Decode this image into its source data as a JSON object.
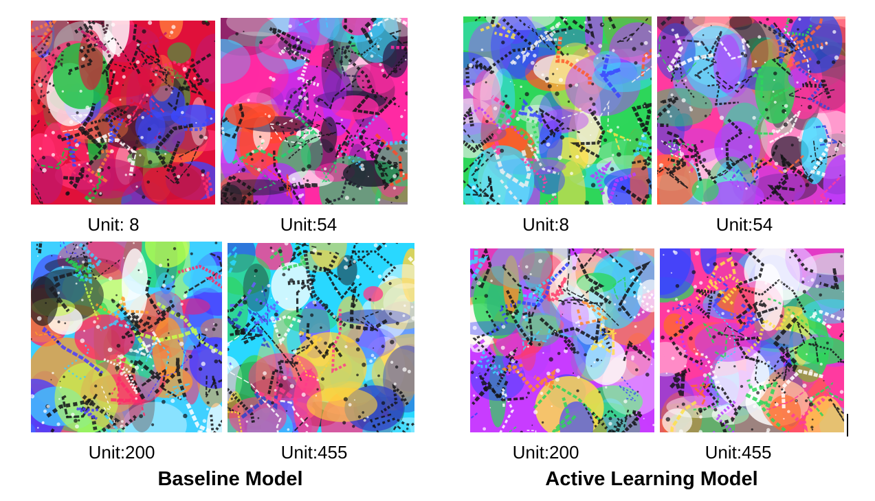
{
  "groups": {
    "baseline": {
      "title": "Baseline Model",
      "units": [
        {
          "label": "Unit: 8",
          "palette": [
            "#e0103a",
            "#ff2d6f",
            "#c2186b",
            "#ff7a3c",
            "#3a1a2a",
            "#ffffff",
            "#19c23f",
            "#3a48ff"
          ]
        },
        {
          "label": "Unit:54",
          "palette": [
            "#ff2aa3",
            "#2a1e4a",
            "#44c8ff",
            "#ffffff",
            "#b82cff",
            "#ff4a2a",
            "#22d36b",
            "#202030"
          ]
        },
        {
          "label": "Unit:200",
          "palette": [
            "#3fd0ff",
            "#1c1c22",
            "#ffffff",
            "#22d84f",
            "#4a3cff",
            "#ff2a6a",
            "#c8ff4a",
            "#ff9a2a"
          ]
        },
        {
          "label": "Unit:455",
          "palette": [
            "#29d8ff",
            "#3044c8",
            "#ffffff",
            "#1e1e28",
            "#32d45a",
            "#ff3a8a",
            "#ffd23a",
            "#6a5cff"
          ]
        }
      ]
    },
    "active": {
      "title": "Active Learning Model",
      "units": [
        {
          "label": "Unit:8",
          "palette": [
            "#2ed65a",
            "#3a44ff",
            "#ff3aa0",
            "#ffe04a",
            "#38d8ff",
            "#b83cff",
            "#ff5a2a",
            "#f0f0f0"
          ]
        },
        {
          "label": "Unit:54",
          "palette": [
            "#ff3aa0",
            "#3048e0",
            "#38d8ff",
            "#ffffff",
            "#ff6a3a",
            "#b83cff",
            "#2ed65a",
            "#1e1e30"
          ]
        },
        {
          "label": "Unit:200",
          "palette": [
            "#c83cff",
            "#2ed65a",
            "#ff3a6a",
            "#38d8ff",
            "#ffe04a",
            "#3a44ff",
            "#ffffff",
            "#ff8a2a"
          ]
        },
        {
          "label": "Unit:455",
          "palette": [
            "#ff3aa0",
            "#3a44ff",
            "#ff6a2a",
            "#2ed65a",
            "#38d8ff",
            "#ffe04a",
            "#b83cff",
            "#ffffff"
          ]
        }
      ]
    }
  }
}
